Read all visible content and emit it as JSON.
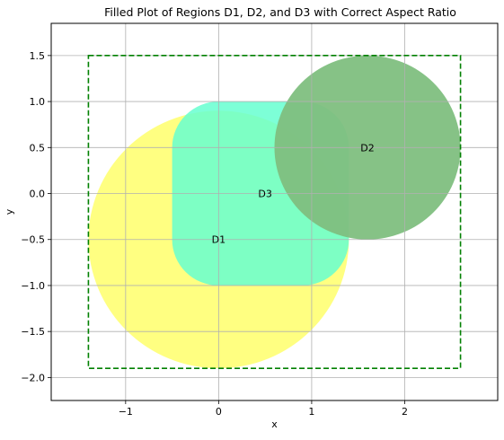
{
  "chart_data": {
    "type": "area",
    "title": "Filled Plot of Regions D1, D2, and D3 with Correct Aspect Ratio",
    "xlabel": "x",
    "ylabel": "y",
    "xlim": [
      -1.8,
      3.0
    ],
    "ylim": [
      -2.25,
      1.85
    ],
    "xticks": [
      -1,
      0,
      1,
      2
    ],
    "yticks": [
      1.5,
      1.0,
      0.5,
      0.0,
      -0.5,
      -1.0,
      -1.5,
      -2.0
    ],
    "xtick_labels": [
      "−1",
      "0",
      "1",
      "2"
    ],
    "ytick_labels": [
      "1.5",
      "1.0",
      "0.5",
      "0.0",
      "−0.5",
      "−1.0",
      "−1.5",
      "−2.0"
    ],
    "grid": true,
    "regions": [
      {
        "label": "D1",
        "shape": "circle",
        "center": [
          0.0,
          -0.5
        ],
        "radius": 1.4,
        "color": "#ffff7a",
        "label_at": [
          0.0,
          -0.5
        ]
      },
      {
        "label": "D3",
        "shape": "rounded-rectangle",
        "x_range": [
          -0.5,
          1.4
        ],
        "y_range": [
          -1.0,
          1.0
        ],
        "corner_radius": 0.5,
        "color": "#66ffd0",
        "label_at": [
          0.5,
          0.0
        ]
      },
      {
        "label": "D2",
        "shape": "circle",
        "center": [
          1.6,
          0.5
        ],
        "radius": 1.0,
        "color": "#7fbf7f",
        "label_at": [
          1.6,
          0.5
        ]
      }
    ],
    "bounding_box": {
      "x_range": [
        -1.4,
        2.6
      ],
      "y_range": [
        -1.9,
        1.5
      ],
      "style": "dashed",
      "color": "#008000"
    }
  }
}
